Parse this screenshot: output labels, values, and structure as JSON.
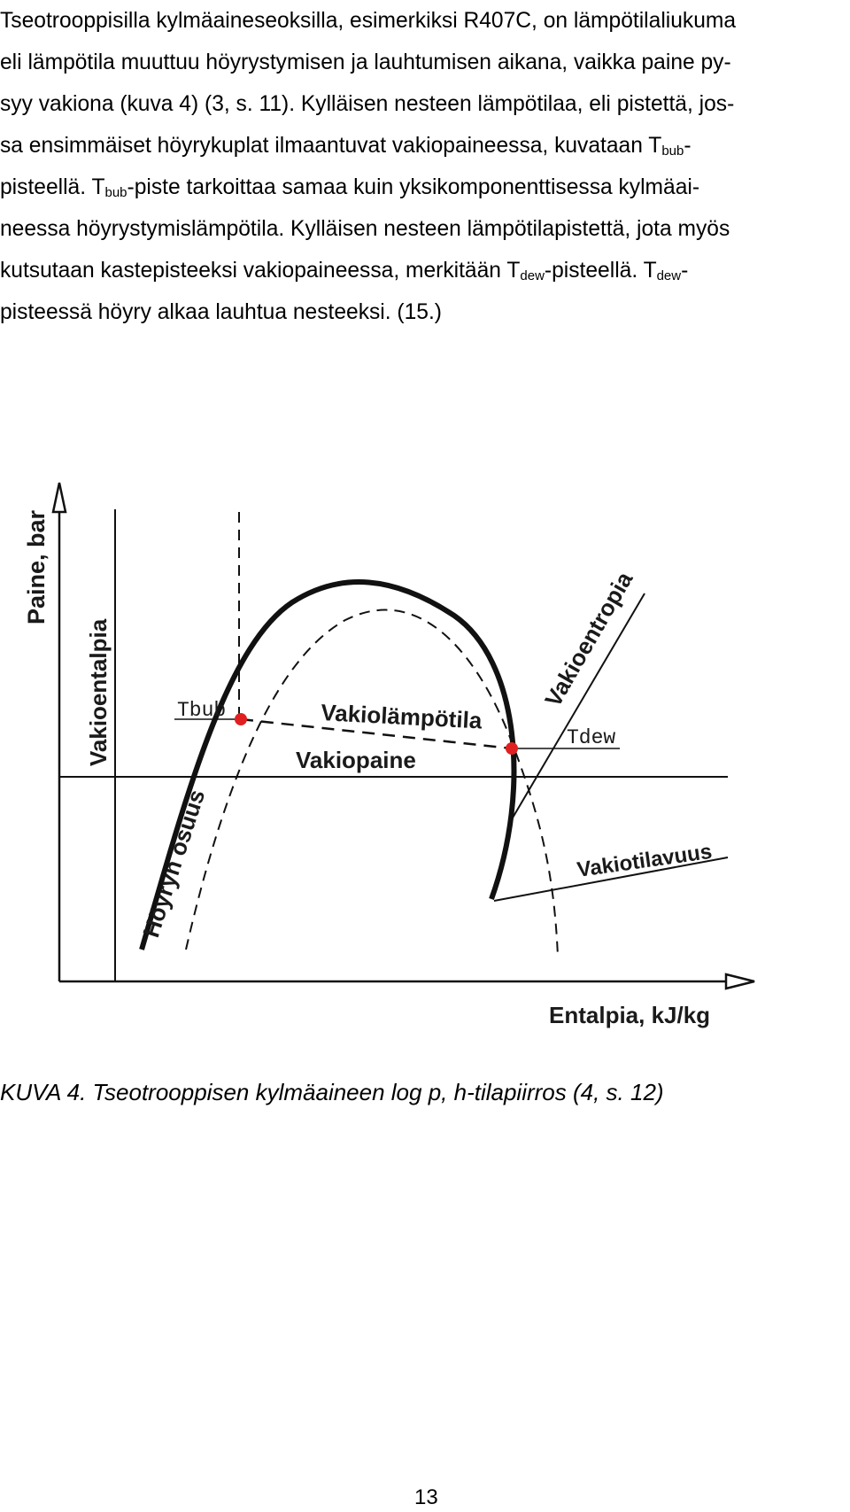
{
  "paragraph": {
    "l1": "Tseotrooppisilla kylmäaineseoksilla, esimerkiksi R407C, on lämpötilaliukuma",
    "l2": "eli lämpötila muuttuu höyrystymisen ja lauhtumisen aikana, vaikka paine py-",
    "l3": "syy vakiona (kuva 4) (3, s. 11). Kylläisen nesteen lämpötilaa, eli pistettä, jos-",
    "l4a": "sa ensimmäiset höyrykuplat ilmaantuvat vakiopaineessa, kuvataan T",
    "l4b": "bub",
    "l4c": "-",
    "l5a": "pisteellä. T",
    "l5b": "bub",
    "l5c": "-piste tarkoittaa samaa kuin yksikomponenttisessa kylmäai-",
    "l6": "neessa höyrystymislämpötila. Kylläisen nesteen lämpötilapistettä, jota myös",
    "l7a": "kutsutaan kastepisteeksi vakiopaineessa, merkitään T",
    "l7b": "dew",
    "l7c": "-pisteellä. T",
    "l7d": "dew",
    "l7e": "-",
    "l8": "pisteessä höyry alkaa lauhtua nesteeksi. (15.)"
  },
  "figure": {
    "y_axis_label": "Paine, bar",
    "x_axis_label": "Entalpia, kJ/kg",
    "labels": {
      "vakioentalpia": "Vakioentalpia",
      "tbub": "Tbub",
      "tdew": "Tdew",
      "vakiolampotila": "Vakiolämpötila",
      "vakiopaine": "Vakiopaine",
      "vakioentropia": "Vakioentropia",
      "vakiotilavuus": "Vakiotilavuus",
      "hoyryn_osuus": "Höyryn osuus"
    },
    "colors": {
      "curve": "#111111",
      "point": "#e02020"
    }
  },
  "caption": "KUVA 4. Tseotrooppisen kylmäaineen log p, h-tilapiirros (4, s. 12)",
  "page_number": "13"
}
